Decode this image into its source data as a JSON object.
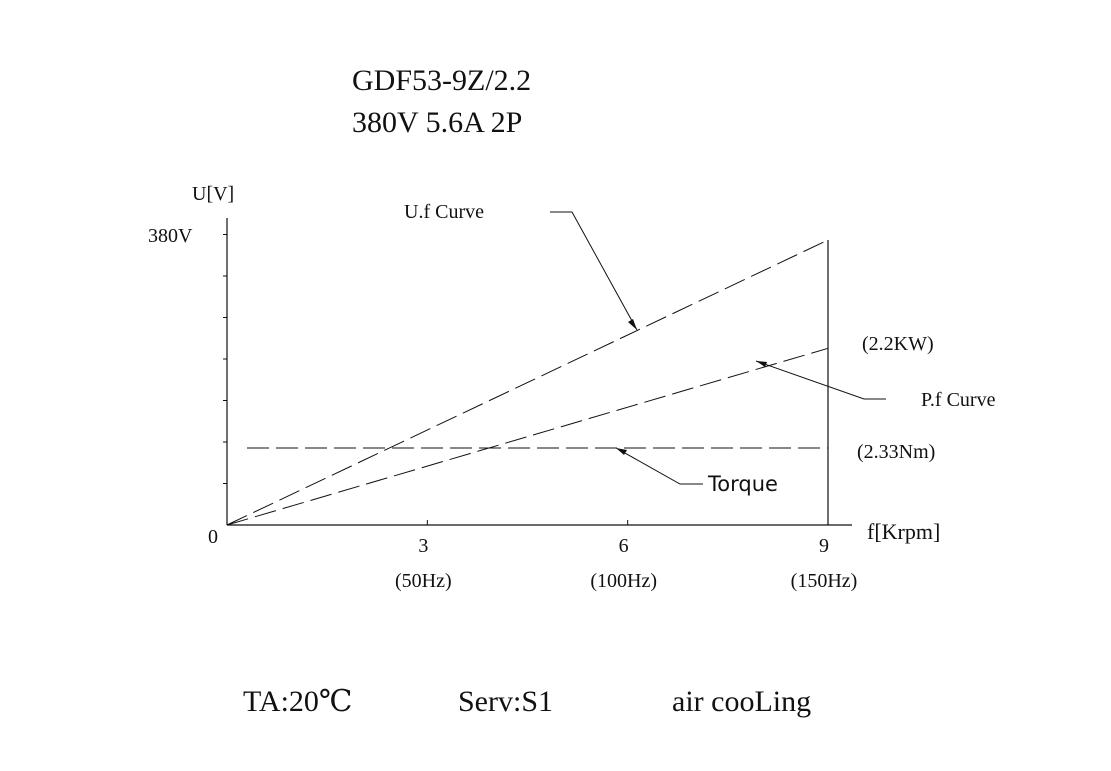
{
  "title": {
    "model": "GDF53-9Z/2.2",
    "rating": "380V 5.6A 2P"
  },
  "footer": {
    "ambient": "TA:20℃",
    "duty": "Serv:S1",
    "cooling": "air cooLing"
  },
  "chart_data": {
    "type": "line",
    "xlabel": "f[Krpm]",
    "ylabel": "U[V]",
    "xlim": [
      0,
      9
    ],
    "origin_label": "0",
    "y_max_label": "380V",
    "x_ticks": [
      {
        "value": 3,
        "label": "3",
        "sublabel": "(50Hz)"
      },
      {
        "value": 6,
        "label": "6",
        "sublabel": "(100Hz)"
      },
      {
        "value": 9,
        "label": "9",
        "sublabel": "(150Hz)"
      }
    ],
    "series": [
      {
        "name": "U.f Curve",
        "x": [
          0,
          9
        ],
        "y": [
          0,
          1.0
        ]
      },
      {
        "name": "P.f Curve",
        "x": [
          0,
          9
        ],
        "y": [
          0,
          0.62
        ],
        "end_label": "(2.2KW)"
      },
      {
        "name": "Torque",
        "x": [
          0.3,
          9
        ],
        "y": [
          0.27,
          0.27
        ],
        "end_label": "(2.33Nm)"
      }
    ],
    "grid": false,
    "line_style": "dashed"
  }
}
